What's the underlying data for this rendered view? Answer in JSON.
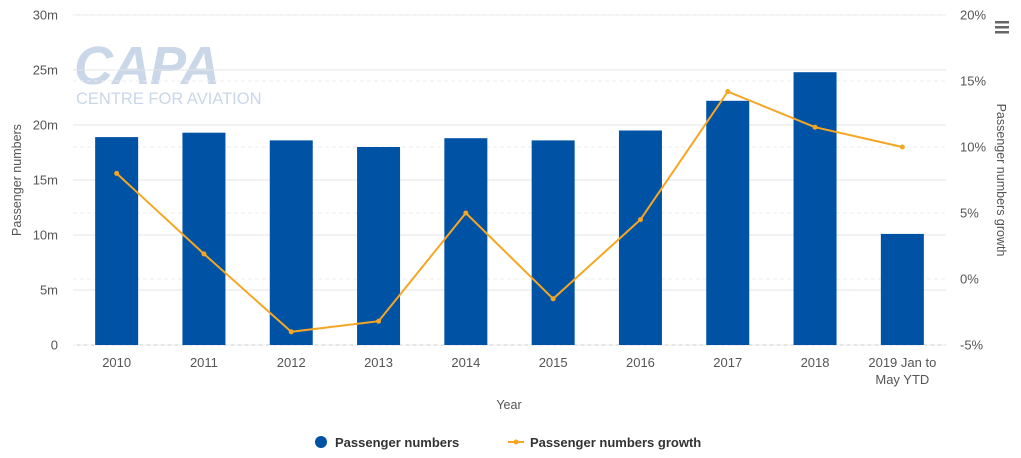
{
  "watermark": {
    "brand": "CAPA",
    "tagline": "CENTRE FOR AVIATION"
  },
  "menu": {
    "icon": "hamburger-menu-icon"
  },
  "colors": {
    "bar": "#0052a5",
    "line": "#f5a623",
    "grid": "#e6e6e6",
    "watermark": "#c9d7e8"
  },
  "chart_data": {
    "type": "bar",
    "categories": [
      "2010",
      "2011",
      "2012",
      "2013",
      "2014",
      "2015",
      "2016",
      "2017",
      "2018",
      "2019 Jan to May YTD"
    ],
    "x_tick_lines": [
      [
        "2010"
      ],
      [
        "2011"
      ],
      [
        "2012"
      ],
      [
        "2013"
      ],
      [
        "2014"
      ],
      [
        "2015"
      ],
      [
        "2016"
      ],
      [
        "2017"
      ],
      [
        "2018"
      ],
      [
        "2019 Jan to",
        "May YTD"
      ]
    ],
    "xlabel": "Year",
    "y_left": {
      "label": "Passenger numbers",
      "ticks": [
        "0",
        "5m",
        "10m",
        "15m",
        "20m",
        "25m",
        "30m"
      ],
      "tick_values": [
        0,
        5000000,
        10000000,
        15000000,
        20000000,
        25000000,
        30000000
      ],
      "range": [
        0,
        30000000
      ]
    },
    "y_right": {
      "label": "Passenger numbers growth",
      "ticks": [
        "-5%",
        "0%",
        "5%",
        "10%",
        "15%",
        "20%"
      ],
      "tick_values": [
        -5,
        0,
        5,
        10,
        15,
        20
      ],
      "range": [
        -5,
        20
      ]
    },
    "series": [
      {
        "name": "Passenger numbers",
        "type": "bar",
        "axis": "left",
        "values": [
          18900000,
          19300000,
          18600000,
          18000000,
          18800000,
          18600000,
          19500000,
          22200000,
          24800000,
          10100000
        ]
      },
      {
        "name": "Passenger numbers growth",
        "type": "line",
        "axis": "right",
        "values": [
          8.0,
          1.9,
          -4.0,
          -3.2,
          5.0,
          -1.5,
          4.5,
          14.2,
          11.5,
          10.0
        ]
      }
    ],
    "legend": {
      "position": "bottom-center",
      "items": [
        {
          "label": "Passenger numbers",
          "marker": "circle"
        },
        {
          "label": "Passenger numbers growth",
          "marker": "line"
        }
      ]
    },
    "grid": true
  }
}
